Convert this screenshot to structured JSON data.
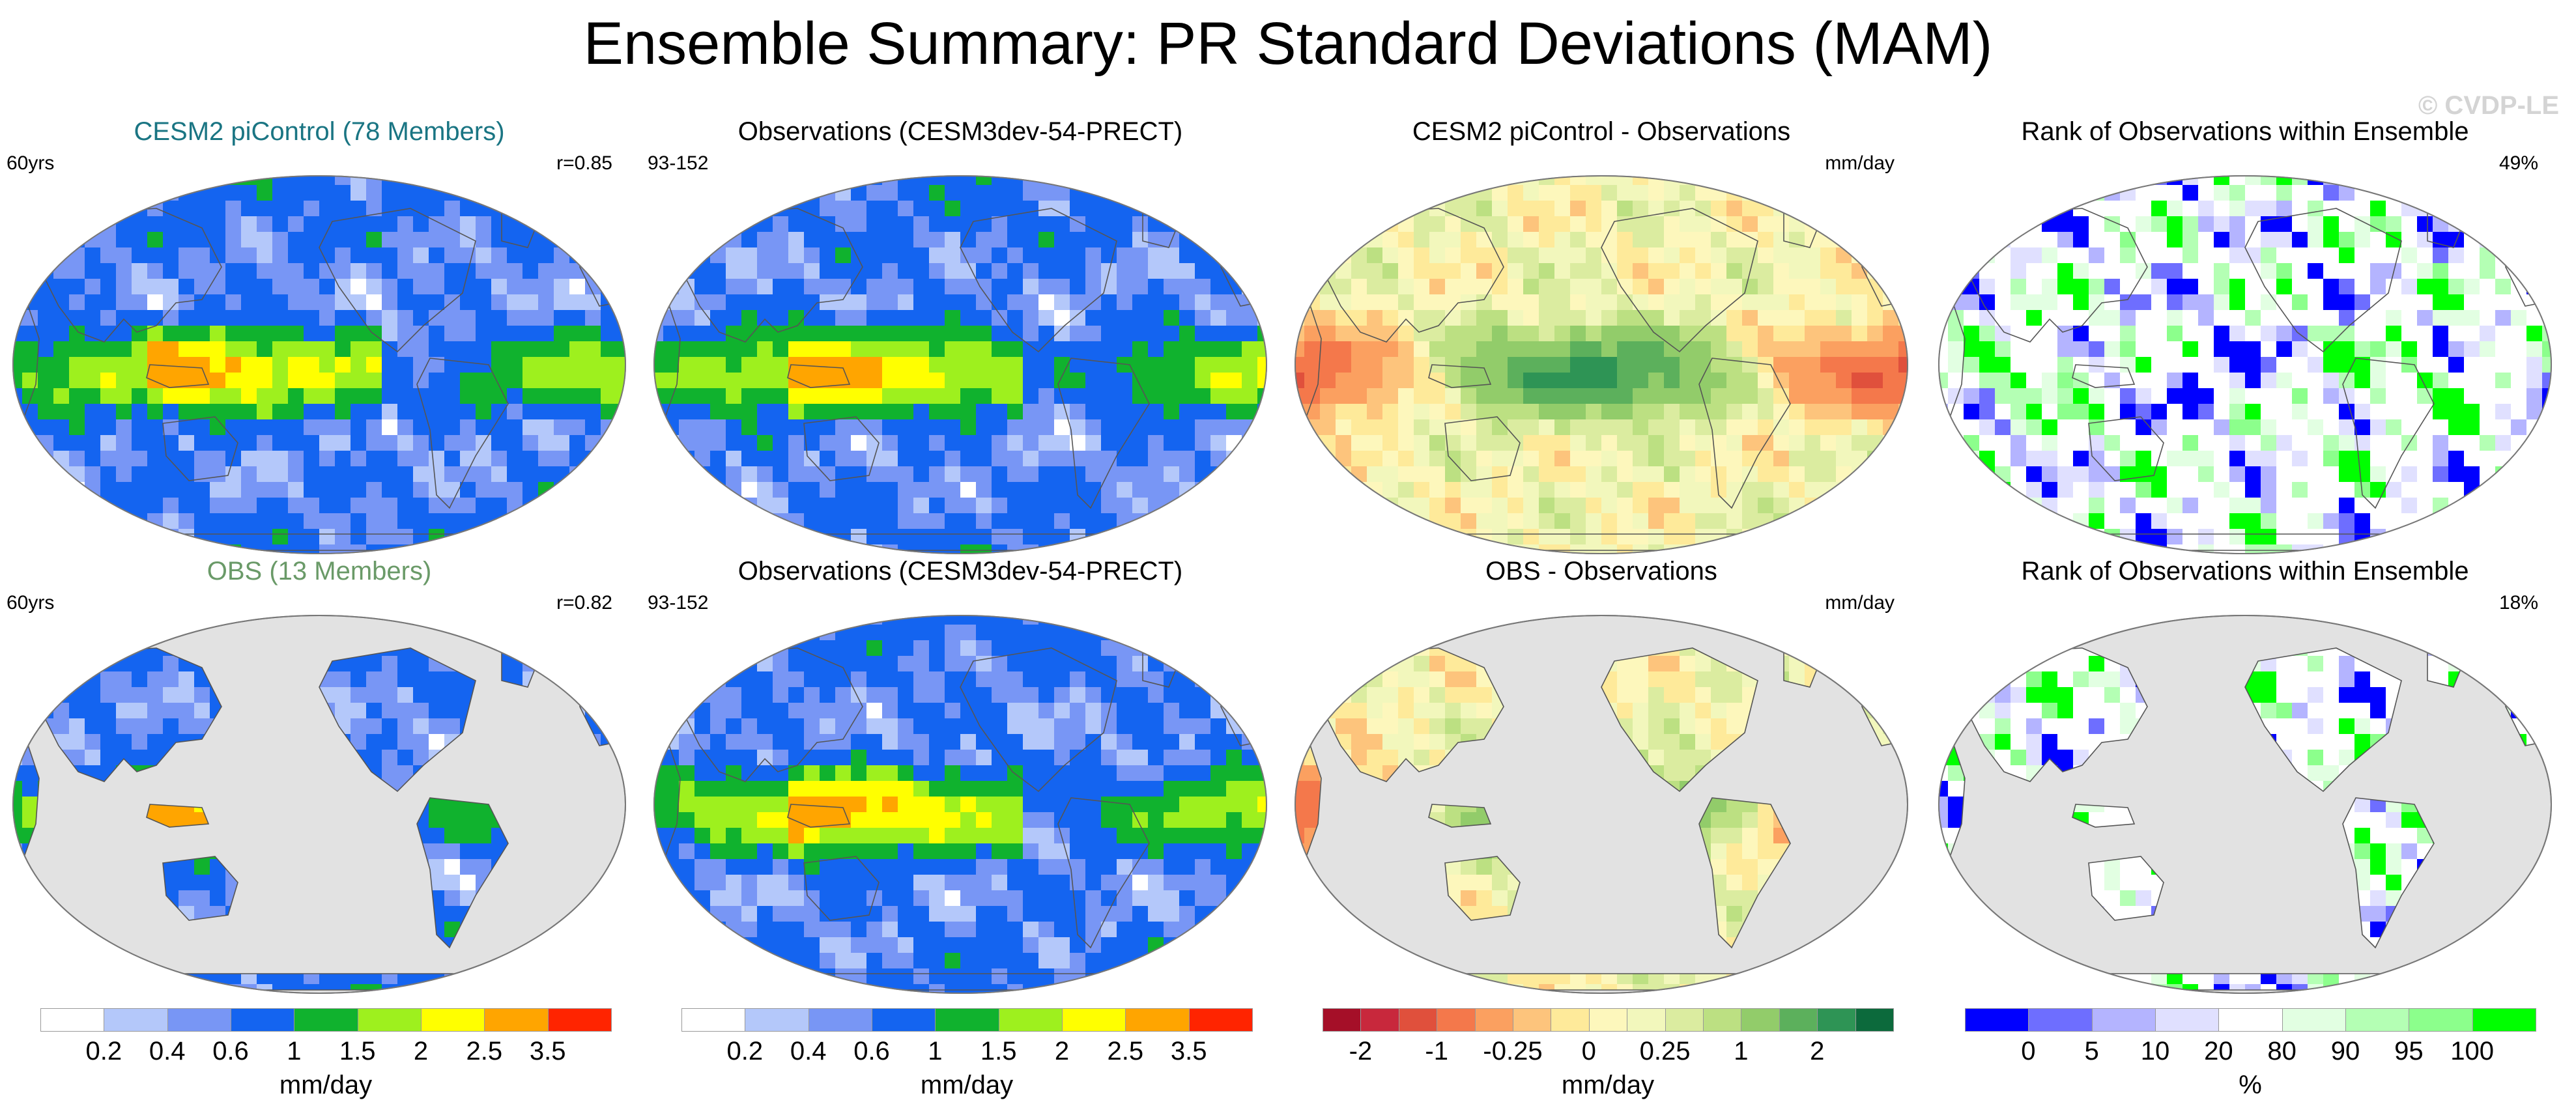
{
  "title": "Ensemble Summary: PR Standard Deviations (MAM)",
  "watermark": "© CVDP-LE",
  "colors": {
    "ocean_gray": "#e2e2e2",
    "title_teal": "#1a7583",
    "title_olive": "#6a9a68"
  },
  "rows": [
    {
      "panels": [
        {
          "title": "CESM2 piControl (78 Members)",
          "left_label": "60yrs",
          "right_label": "r=0.85",
          "field": "model_sd",
          "land_only": false
        },
        {
          "title": "Observations (CESM3dev-54-PRECT)",
          "left_label": "93-152",
          "right_label": "",
          "field": "obs_sd",
          "land_only": false
        },
        {
          "title": "CESM2 piControl - Observations",
          "left_label": "",
          "right_label": "mm/day",
          "field": "diff",
          "land_only": false
        },
        {
          "title": "Rank of Observations within Ensemble",
          "left_label": "",
          "right_label": "49%",
          "field": "rank",
          "land_only": false
        }
      ]
    },
    {
      "panels": [
        {
          "title": "OBS (13 Members)",
          "left_label": "60yrs",
          "right_label": "r=0.82",
          "field": "model_sd",
          "land_only": true
        },
        {
          "title": "Observations (CESM3dev-54-PRECT)",
          "left_label": "93-152",
          "right_label": "",
          "field": "obs_sd",
          "land_only": false
        },
        {
          "title": "OBS - Observations",
          "left_label": "",
          "right_label": "mm/day",
          "field": "diff",
          "land_only": true
        },
        {
          "title": "Rank of Observations within Ensemble",
          "left_label": "",
          "right_label": "18%",
          "field": "rank",
          "land_only": true
        }
      ]
    }
  ],
  "colorbars": [
    {
      "name": "sd",
      "colors": [
        "#ffffff",
        "#b4c8fa",
        "#7896f5",
        "#1464f0",
        "#10b22e",
        "#9ef01e",
        "#ffff00",
        "#ffa500",
        "#ff2400"
      ],
      "ticks": [
        "0.2",
        "0.4",
        "0.6",
        "1",
        "1.5",
        "2",
        "2.5",
        "3.5"
      ],
      "unit": "mm/day"
    },
    {
      "name": "sd2",
      "colors": [
        "#ffffff",
        "#b4c8fa",
        "#7896f5",
        "#1464f0",
        "#10b22e",
        "#9ef01e",
        "#ffff00",
        "#ffa500",
        "#ff2400"
      ],
      "ticks": [
        "0.2",
        "0.4",
        "0.6",
        "1",
        "1.5",
        "2",
        "2.5",
        "3.5"
      ],
      "unit": "mm/day"
    },
    {
      "name": "diff",
      "colors": [
        "#a50f28",
        "#c8283c",
        "#e0503c",
        "#f4784b",
        "#fba060",
        "#fdc47c",
        "#feea9a",
        "#fdf7bc",
        "#f2f7bc",
        "#dbeca0",
        "#bce082",
        "#92cc6a",
        "#5cb05c",
        "#2e9455",
        "#0c6a3c"
      ],
      "ticks": [
        "-2",
        "-1",
        "-0.25",
        "0",
        "0.25",
        "1",
        "2"
      ],
      "tick_slots": [
        1,
        3,
        5,
        7,
        9,
        11,
        13
      ],
      "unit": "mm/day"
    },
    {
      "name": "rank",
      "colors": [
        "#0000ff",
        "#6e6eff",
        "#b4b4ff",
        "#e0e0ff",
        "#ffffff",
        "#e2ffe2",
        "#b4ffb4",
        "#8cff8c",
        "#00ff00"
      ],
      "ticks": [
        "0",
        "5",
        "10",
        "20",
        "80",
        "90",
        "95",
        "100"
      ],
      "unit": "%"
    }
  ],
  "chart_data": {
    "type": "heatmap",
    "title": "Ensemble Summary: PR Standard Deviations (MAM)",
    "projection": "Robinson (global, Pacific-centered)",
    "panels": [
      {
        "title": "CESM2 piControl (78 Members)",
        "variable": "PR standard deviation",
        "units": "mm/day",
        "annotations": [
          "60yrs",
          "r=0.85"
        ]
      },
      {
        "title": "Observations (CESM3dev-54-PRECT)",
        "variable": "PR standard deviation",
        "units": "mm/day",
        "annotations": [
          "93-152"
        ]
      },
      {
        "title": "CESM2 piControl - Observations",
        "variable": "difference",
        "units": "mm/day"
      },
      {
        "title": "Rank of Observations within Ensemble",
        "variable": "rank",
        "units": "%",
        "annotations": [
          "49%"
        ]
      },
      {
        "title": "OBS (13 Members)",
        "variable": "PR standard deviation",
        "units": "mm/day",
        "annotations": [
          "60yrs",
          "r=0.82"
        ]
      },
      {
        "title": "Observations (CESM3dev-54-PRECT)",
        "variable": "PR standard deviation",
        "units": "mm/day",
        "annotations": [
          "93-152"
        ]
      },
      {
        "title": "OBS - Observations",
        "variable": "difference",
        "units": "mm/day"
      },
      {
        "title": "Rank of Observations within Ensemble",
        "variable": "rank",
        "units": "%",
        "annotations": [
          "18%"
        ]
      }
    ],
    "colorbar_levels": {
      "std_dev_mm_per_day": [
        0.2,
        0.4,
        0.6,
        1,
        1.5,
        2,
        2.5,
        3.5
      ],
      "difference_mm_per_day": [
        -2,
        -1,
        -0.25,
        0,
        0.25,
        1,
        2
      ],
      "rank_percent": [
        0,
        5,
        10,
        20,
        80,
        90,
        95,
        100
      ]
    }
  }
}
